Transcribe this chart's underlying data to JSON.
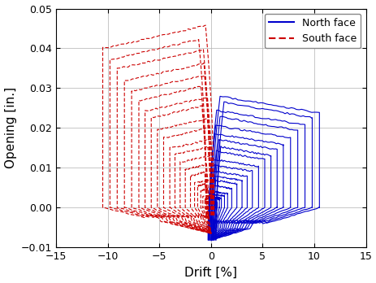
{
  "xlabel": "Drift [%]",
  "ylabel": "Opening [in.]",
  "xlim": [
    -15,
    15
  ],
  "ylim": [
    -0.01,
    0.05
  ],
  "xticks": [
    -15,
    -10,
    -5,
    0,
    5,
    10,
    15
  ],
  "yticks": [
    -0.01,
    0,
    0.01,
    0.02,
    0.03,
    0.04,
    0.05
  ],
  "north_color": "#0000CC",
  "south_color": "#CC0000",
  "legend_north": "North face",
  "legend_south": "South face",
  "figsize": [
    4.64,
    3.48
  ],
  "dpi": 100,
  "north_amps": [
    0.4,
    0.6,
    0.8,
    1.0,
    1.3,
    1.6,
    2.0,
    2.5,
    3.0,
    3.5,
    4.0,
    4.6,
    5.2,
    5.8,
    6.4,
    7.0,
    7.7,
    8.4,
    9.1,
    9.8,
    10.5
  ],
  "south_amps": [
    0.4,
    0.6,
    0.8,
    1.0,
    1.3,
    1.6,
    2.0,
    2.5,
    3.0,
    3.5,
    4.0,
    4.6,
    5.2,
    5.8,
    6.4,
    7.0,
    7.7,
    8.4,
    9.1,
    9.8,
    10.5
  ],
  "north_open_scale": 0.00268,
  "south_open_scale": 0.00435,
  "neg_open_north": -0.0082,
  "neg_open_south": -0.0065,
  "linewidth": 0.8
}
